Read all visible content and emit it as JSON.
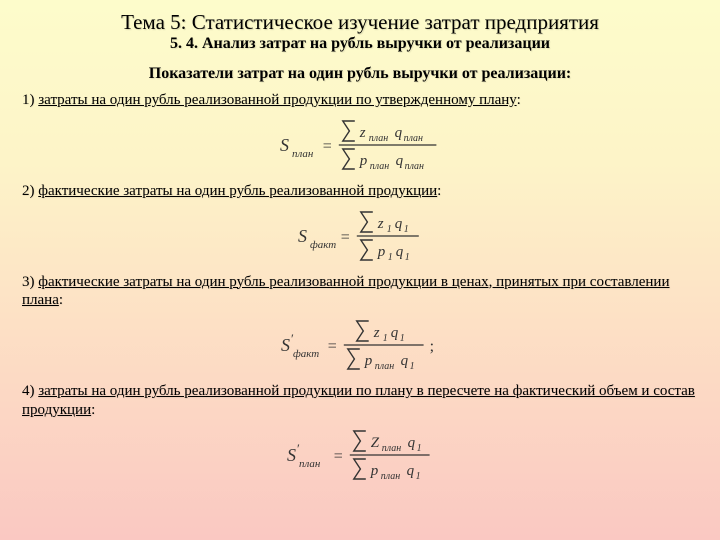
{
  "title": "Тема 5: Статистическое изучение затрат  предприятия",
  "subtitle": "5. 4. Анализ затрат на рубль выручки от реализации",
  "section_head": "Показатели затрат на один рубль выручки от реализации:",
  "items": [
    {
      "prefix": "1) ",
      "underline": "затраты на один рубль реализованной продукции по утвержденному плану",
      "suffix": ":"
    },
    {
      "prefix": "2) ",
      "underline": "фактические затраты на один рубль реализованной продукции",
      "suffix": ":"
    },
    {
      "prefix": "3) ",
      "underline": "фактические затраты на один рубль реализованной продукции в ценах, принятых при составлении плана",
      "suffix": ":"
    },
    {
      "prefix": "4) ",
      "underline": "затраты на один рубль реализованной продукции по плану в пересчете на фактический объем и состав продукции",
      "suffix": ":"
    }
  ],
  "formulas": [
    {
      "lhs_main": "S",
      "lhs_sub": "план",
      "lhs_prime": false,
      "num_sym": "z",
      "num_sub": "план",
      "num_q_sub": "план",
      "den_sym": "p",
      "den_sub": "план",
      "den_q_sub": "план",
      "big_num_sym": false,
      "trailing_semicolon": false
    },
    {
      "lhs_main": "S",
      "lhs_sub": "факт",
      "lhs_prime": false,
      "num_sym": "z",
      "num_sub": "1",
      "num_q_sub": "1",
      "den_sym": "p",
      "den_sub": "1",
      "den_q_sub": "1",
      "big_num_sym": false,
      "trailing_semicolon": false
    },
    {
      "lhs_main": "S",
      "lhs_sub": "факт",
      "lhs_prime": true,
      "num_sym": "z",
      "num_sub": "1",
      "num_q_sub": "1",
      "den_sym": "p",
      "den_sub": "план",
      "den_q_sub": "1",
      "big_num_sym": false,
      "trailing_semicolon": true
    },
    {
      "lhs_main": "S",
      "lhs_sub": "план",
      "lhs_prime": true,
      "num_sym": "Z",
      "num_sub": "план",
      "num_q_sub": "1",
      "den_sym": "p",
      "den_sub": "план",
      "den_q_sub": "1",
      "big_num_sym": true,
      "trailing_semicolon": false
    }
  ],
  "colors": {
    "text": "#000000",
    "formula": "#333333"
  }
}
